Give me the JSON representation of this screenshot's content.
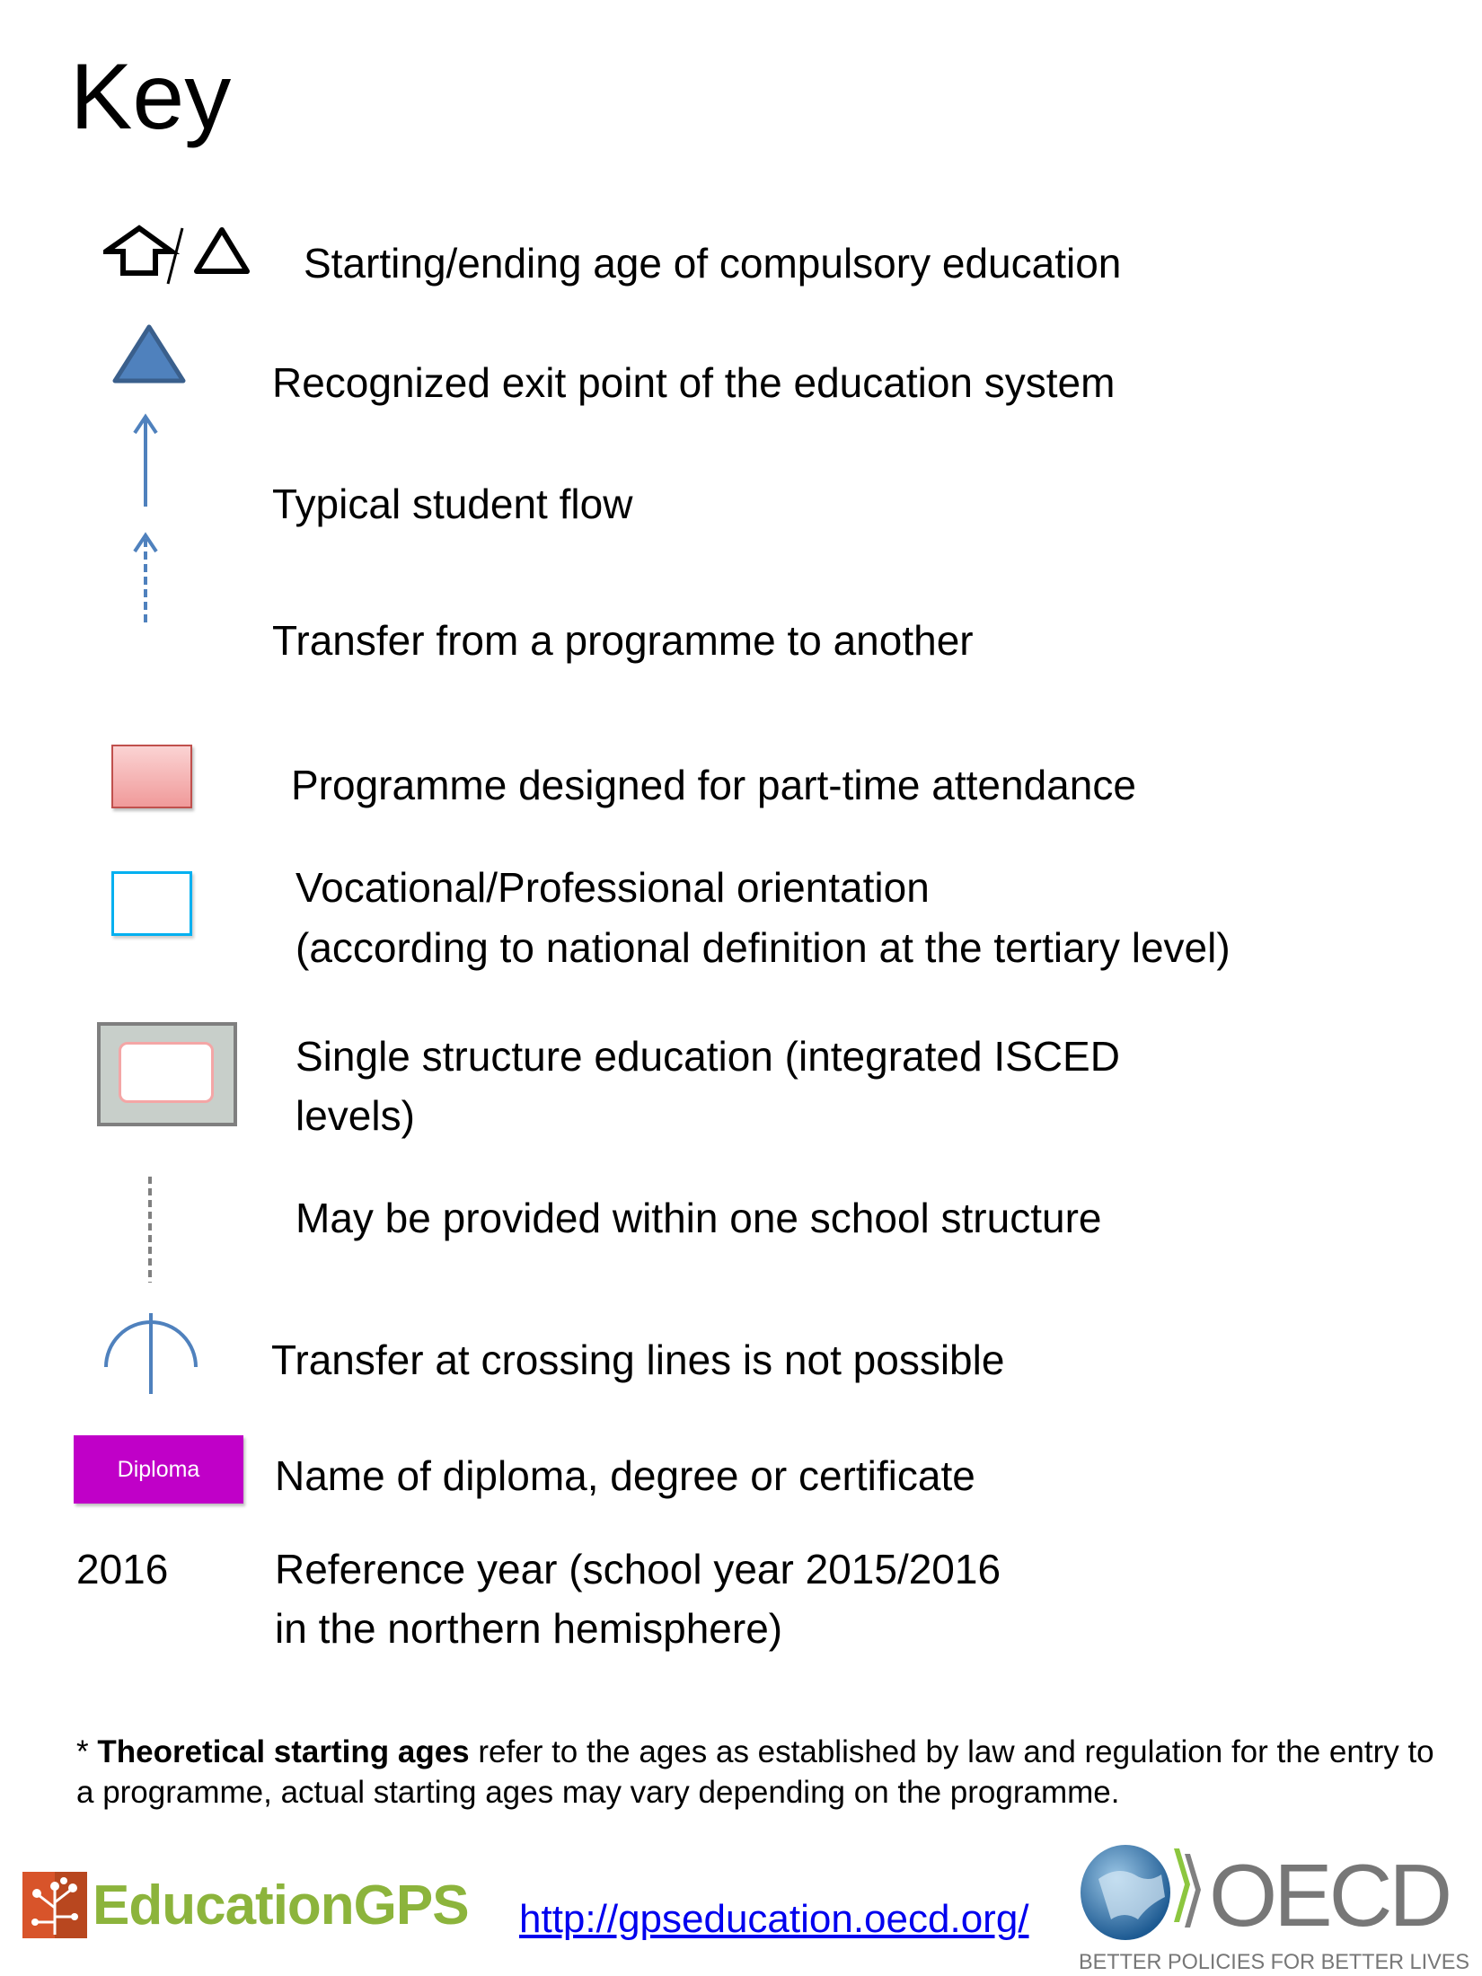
{
  "title": "Key",
  "items": [
    {
      "icon": "compulsory-education-arrow-triangle-icon",
      "lines": [
        "Starting/ending age of compulsory education"
      ]
    },
    {
      "icon": "exit-point-triangle-icon",
      "lines": [
        "Recognized exit point of the education system"
      ]
    },
    {
      "icon": "solid-arrow-icon",
      "lines": [
        "Typical student flow"
      ]
    },
    {
      "icon": "dashed-arrow-icon",
      "lines": [
        "Transfer from a programme to another"
      ]
    },
    {
      "icon": "part-time-box-icon",
      "lines": [
        "Programme designed for part-time attendance"
      ]
    },
    {
      "icon": "vocational-box-icon",
      "lines": [
        "Vocational/Professional orientation",
        "(according to national definition at the tertiary level)"
      ]
    },
    {
      "icon": "single-structure-box-icon",
      "lines": [
        "Single structure education (integrated ISCED",
        "levels)"
      ]
    },
    {
      "icon": "dashed-line-icon",
      "lines": [
        "May be provided within one school structure"
      ]
    },
    {
      "icon": "crossing-lines-icon",
      "lines": [
        "Transfer at crossing lines is not possible"
      ]
    },
    {
      "badge": "Diploma",
      "lines": [
        "Name of diploma, degree or certificate"
      ]
    },
    {
      "year": "2016",
      "lines": [
        "Reference year (school year 2015/2016",
        "in the northern hemisphere)"
      ]
    }
  ],
  "footnote": {
    "prefix": "* ",
    "bold": "Theoretical starting ages",
    "rest": " refer to the ages as established by law and regulation for the entry to a programme, actual starting ages may vary depending on the programme."
  },
  "footer": {
    "education_gps_logo": "EducationGPS",
    "link": "http://gpseducation.oecd.org/",
    "oecd_logo": "OECD",
    "oecd_tagline": "BETTER POLICIES FOR BETTER LIVES"
  },
  "colors": {
    "blue": "#4f81bd",
    "blue_dark": "#3a5f8c",
    "diploma": "#c000c8",
    "part_time": "#f4a6a6",
    "vocational": "#00b0f0",
    "link": "#0000ee",
    "egps_green": "#8cb43c",
    "egps_orange": "#d8542a"
  }
}
